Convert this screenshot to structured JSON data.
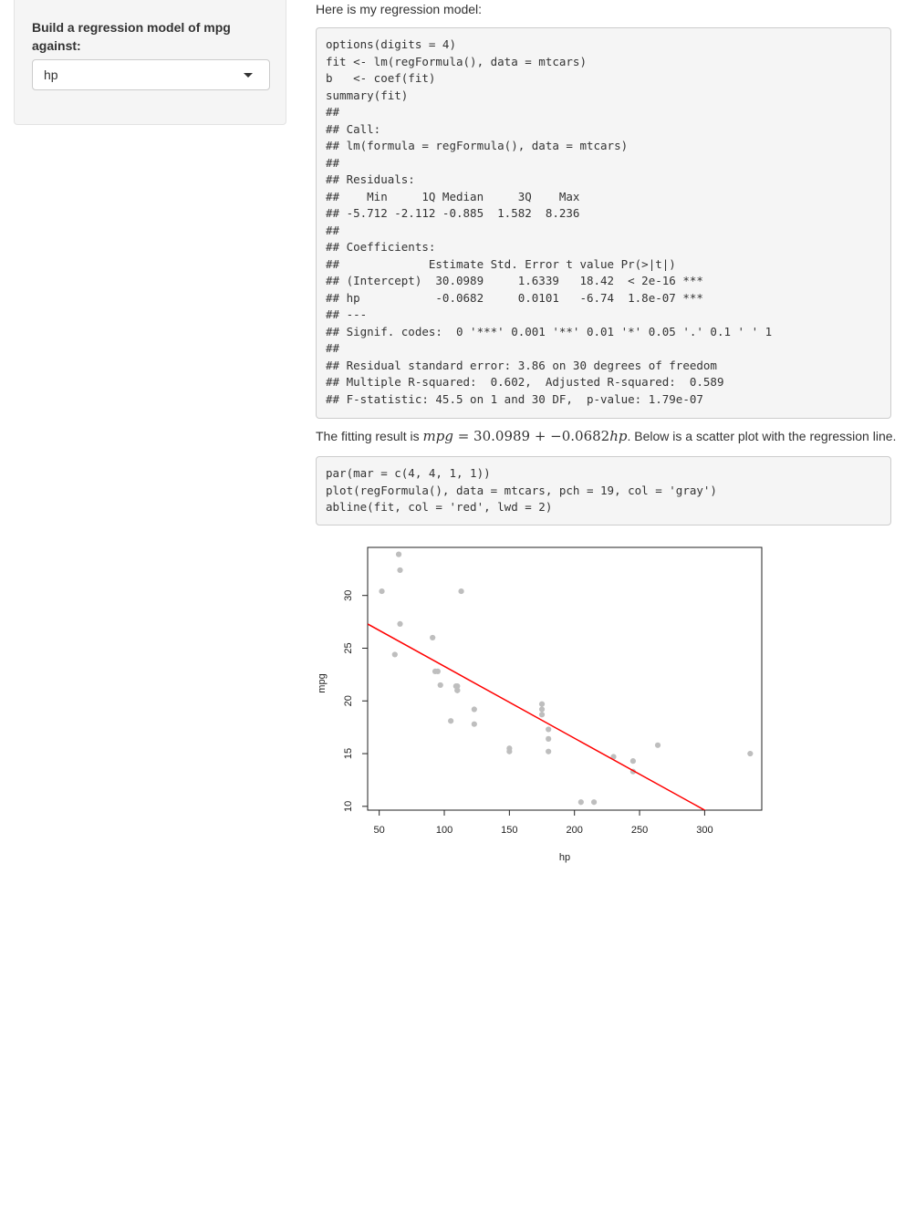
{
  "sidebar": {
    "label": "Build a regression model of mpg against:",
    "select": {
      "value": "hp"
    }
  },
  "main": {
    "intro": "Here is my regression model:",
    "code1": [
      "options(digits = 4)",
      "fit <- lm(regFormula(), data = mtcars)",
      "b   <- coef(fit)",
      "summary(fit)",
      "##",
      "## Call:",
      "## lm(formula = regFormula(), data = mtcars)",
      "##",
      "## Residuals:",
      "##    Min     1Q Median     3Q    Max",
      "## -5.712 -2.112 -0.885  1.582  8.236",
      "##",
      "## Coefficients:",
      "##             Estimate Std. Error t value Pr(>|t|)",
      "## (Intercept)  30.0989     1.6339   18.42  < 2e-16 ***",
      "## hp           -0.0682     0.0101   -6.74  1.8e-07 ***",
      "## ---",
      "## Signif. codes:  0 '***' 0.001 '**' 0.01 '*' 0.05 '.' 0.1 ' ' 1",
      "##",
      "## Residual standard error: 3.86 on 30 degrees of freedom",
      "## Multiple R-squared:  0.602,  Adjusted R-squared:  0.589",
      "## F-statistic: 45.5 on 1 and 30 DF,  p-value: 1.79e-07"
    ],
    "fit_text": {
      "prefix": "The fitting result is ",
      "y": "mpg",
      "eq": " = 30.0989 + −0.0682",
      "x": "hp",
      "suffix": ". Below is a scatter plot with the regression line."
    },
    "code2": [
      "par(mar = c(4, 4, 1, 1))",
      "plot(regFormula(), data = mtcars, pch = 19, col = 'gray')",
      "abline(fit, col = 'red', lwd = 2)"
    ]
  },
  "chart_data": {
    "type": "scatter",
    "xlabel": "hp",
    "ylabel": "mpg",
    "xlim": [
      41.12,
      343.88
    ],
    "ylim": [
      9.64,
      34.56
    ],
    "xticks": [
      50,
      100,
      150,
      200,
      250,
      300
    ],
    "yticks": [
      10,
      15,
      20,
      25,
      30
    ],
    "point_color": "#bebebe",
    "line_color": "#ff0000",
    "regression_line": {
      "intercept": 30.0989,
      "slope": -0.0682
    },
    "points": [
      {
        "x": 110,
        "y": 21.0
      },
      {
        "x": 110,
        "y": 21.0
      },
      {
        "x": 93,
        "y": 22.8
      },
      {
        "x": 110,
        "y": 21.4
      },
      {
        "x": 175,
        "y": 18.7
      },
      {
        "x": 105,
        "y": 18.1
      },
      {
        "x": 245,
        "y": 14.3
      },
      {
        "x": 62,
        "y": 24.4
      },
      {
        "x": 95,
        "y": 22.8
      },
      {
        "x": 123,
        "y": 19.2
      },
      {
        "x": 123,
        "y": 17.8
      },
      {
        "x": 180,
        "y": 16.4
      },
      {
        "x": 180,
        "y": 17.3
      },
      {
        "x": 180,
        "y": 15.2
      },
      {
        "x": 205,
        "y": 10.4
      },
      {
        "x": 215,
        "y": 10.4
      },
      {
        "x": 230,
        "y": 14.7
      },
      {
        "x": 66,
        "y": 32.4
      },
      {
        "x": 52,
        "y": 30.4
      },
      {
        "x": 65,
        "y": 33.9
      },
      {
        "x": 97,
        "y": 21.5
      },
      {
        "x": 150,
        "y": 15.5
      },
      {
        "x": 150,
        "y": 15.2
      },
      {
        "x": 245,
        "y": 13.3
      },
      {
        "x": 175,
        "y": 19.2
      },
      {
        "x": 66,
        "y": 27.3
      },
      {
        "x": 91,
        "y": 26.0
      },
      {
        "x": 113,
        "y": 30.4
      },
      {
        "x": 264,
        "y": 15.8
      },
      {
        "x": 175,
        "y": 19.7
      },
      {
        "x": 335,
        "y": 15.0
      },
      {
        "x": 109,
        "y": 21.4
      }
    ]
  }
}
